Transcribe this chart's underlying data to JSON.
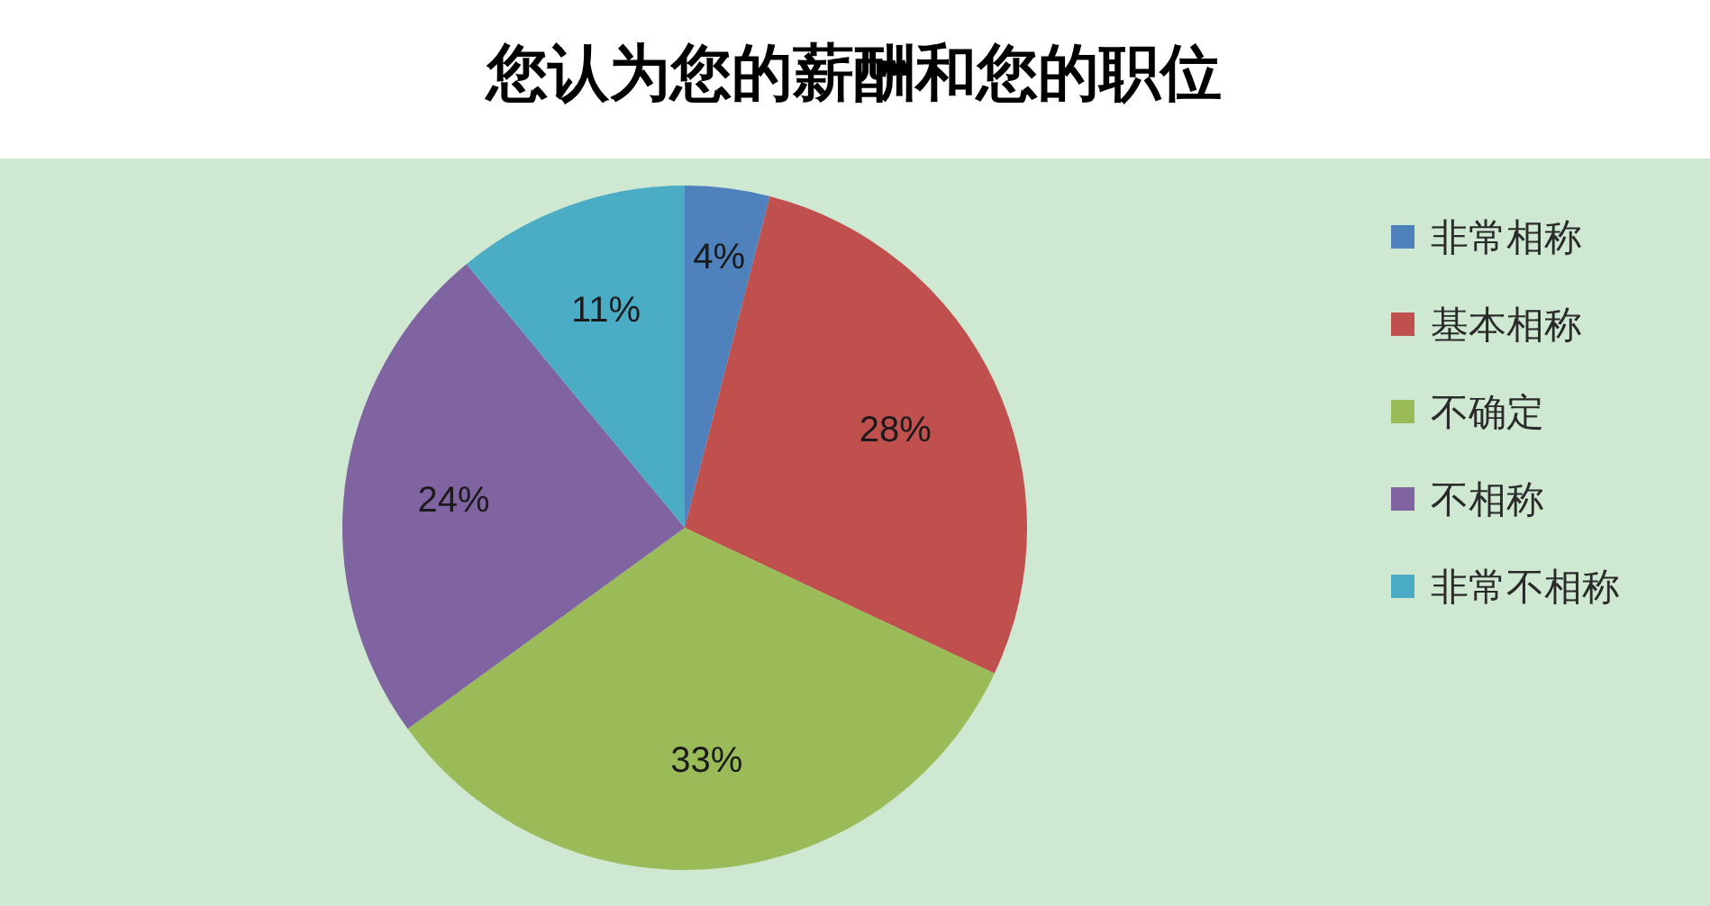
{
  "chart_data": {
    "type": "pie",
    "title": "您认为您的薪酬和您的职位",
    "categories": [
      "非常相称",
      "基本相称",
      "不确定",
      "不相称",
      "非常不相称"
    ],
    "values": [
      4,
      28,
      33,
      24,
      11
    ],
    "colors": [
      "#4f81bd",
      "#c0504d",
      "#9bbb59",
      "#8064a2",
      "#4bacc6"
    ],
    "value_labels": [
      "4%",
      "28%",
      "33%",
      "24%",
      "11%"
    ],
    "legend": "right"
  }
}
